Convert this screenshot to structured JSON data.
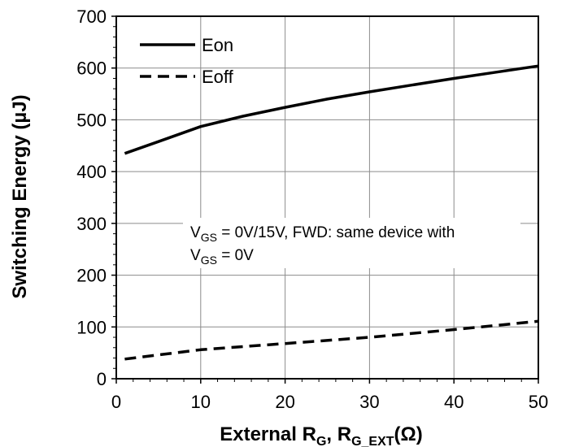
{
  "chart_data": {
    "type": "line",
    "xlabel": "External R",
    "xlabel_sub1": "G",
    "xlabel_sep": ", R",
    "xlabel_sub2": "G_EXT",
    "xlabel_unit": "(Ω)",
    "ylabel": "Switching Energy (µJ)",
    "xlim": [
      0,
      50
    ],
    "ylim": [
      0,
      700
    ],
    "xticks": [
      0,
      10,
      20,
      30,
      40,
      50
    ],
    "yticks": [
      0,
      100,
      200,
      300,
      400,
      500,
      600,
      700
    ],
    "grid": true,
    "legend_position": "top-left",
    "series": [
      {
        "name": "Eon",
        "style": "solid",
        "x": [
          1,
          5,
          10,
          15,
          20,
          25,
          30,
          35,
          40,
          45,
          50
        ],
        "y": [
          435,
          458,
          487,
          507,
          524,
          540,
          554,
          567,
          580,
          592,
          604
        ]
      },
      {
        "name": "Eoff",
        "style": "dashed",
        "x": [
          1,
          10,
          20,
          30,
          40,
          50
        ],
        "y": [
          38,
          56,
          68,
          80,
          95,
          111
        ]
      }
    ],
    "annotation": {
      "line1_prefix": "V",
      "line1_sub": "GS",
      "line1_suffix": " = 0V/15V, FWD: same device with",
      "line2_prefix": "V",
      "line2_sub": "GS",
      "line2_suffix": " = 0V"
    }
  }
}
